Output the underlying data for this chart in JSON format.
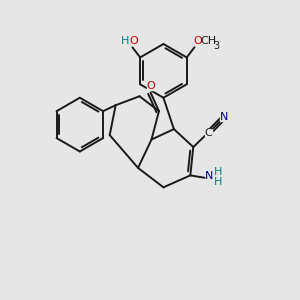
{
  "bg_color": "#e6e6e6",
  "bond_color": "#1a1a1a",
  "bond_width": 1.4,
  "atom_colors": {
    "O": "#cc0000",
    "N": "#00008b",
    "C": "#1a1a1a",
    "H": "#008080"
  },
  "font_size": 10.5,
  "font_size_small": 8.0,
  "font_size_sub": 7.0
}
